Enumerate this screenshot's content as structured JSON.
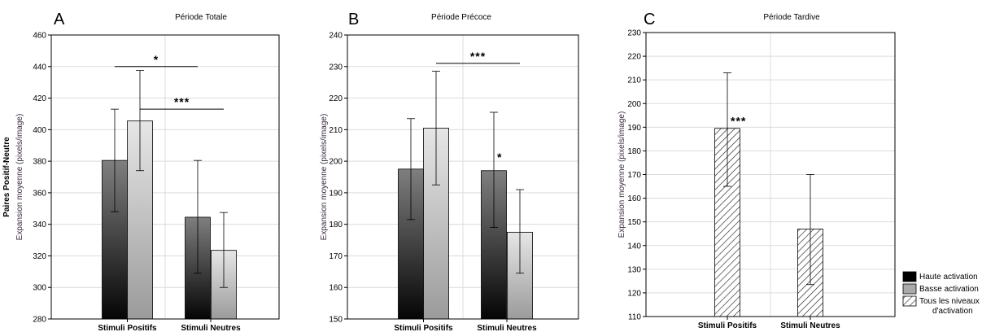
{
  "chart_data": [
    {
      "type": "bar",
      "panel_letter": "A",
      "title": "Période Totale",
      "ylabel_lines": [
        "Paires Positif-Neutre",
        "Expansion moyenne (pixels/image)"
      ],
      "ylim": [
        280,
        460
      ],
      "yticks": [
        280,
        300,
        320,
        340,
        360,
        380,
        400,
        420,
        440,
        460
      ],
      "grid": true,
      "categories": [
        "Stimuli Positifs",
        "Stimuli Neutres"
      ],
      "series": [
        {
          "values": [
            380.5,
            344.5
          ],
          "err_low": [
            348,
            309
          ],
          "err_high": [
            413,
            380.5
          ],
          "fill": "dark"
        },
        {
          "values": [
            405.5,
            323.5
          ],
          "err_low": [
            374,
            300
          ],
          "err_high": [
            437.5,
            347.5
          ],
          "fill": "light"
        }
      ],
      "annotations": [
        {
          "text": "*",
          "x1": 0,
          "x2": 1,
          "level": 440
        },
        {
          "text": "***",
          "x1": 0,
          "x2": 1,
          "level": 413
        }
      ]
    },
    {
      "type": "bar",
      "panel_letter": "B",
      "title": "Période Précoce",
      "ylabel_lines": [
        "Expansion moyenne (pixels/image)"
      ],
      "ylim": [
        150,
        240
      ],
      "yticks": [
        150,
        160,
        170,
        180,
        190,
        200,
        210,
        220,
        230,
        240
      ],
      "grid": true,
      "categories": [
        "Stimuli Positifs",
        "Stimuli Neutres"
      ],
      "series": [
        {
          "values": [
            197.5,
            197
          ],
          "err_low": [
            181.5,
            179
          ],
          "err_high": [
            213.5,
            215.5
          ],
          "fill": "dark"
        },
        {
          "values": [
            210.5,
            177.5
          ],
          "err_low": [
            192.5,
            164.5
          ],
          "err_high": [
            228.5,
            191
          ],
          "fill": "light"
        }
      ],
      "annotations": [
        {
          "text": "***",
          "x1": 0,
          "x2": 1,
          "level": 231
        },
        {
          "text": "*",
          "point": [
            1,
            0
          ],
          "level": 200
        }
      ]
    },
    {
      "type": "bar",
      "panel_letter": "C",
      "title": "Période Tardive",
      "ylabel_lines": [
        "Expansion moyenne (pixels/image)"
      ],
      "ylim": [
        110,
        230
      ],
      "yticks": [
        110,
        120,
        130,
        140,
        150,
        160,
        170,
        180,
        190,
        200,
        210,
        220,
        230
      ],
      "grid": true,
      "categories": [
        "Stimuli Positifs",
        "Stimuli Neutres"
      ],
      "series": [
        {
          "values": [
            189.5,
            147
          ],
          "err_low": [
            165,
            123.5
          ],
          "err_high": [
            213,
            170
          ],
          "fill": "hatch"
        }
      ],
      "annotations": [
        {
          "text": "***",
          "point": [
            0,
            0
          ],
          "level": 191
        }
      ]
    }
  ],
  "legend": {
    "placement": "right",
    "entries": [
      {
        "label_lines": [
          "Haute activation"
        ],
        "fill": "#000000"
      },
      {
        "label_lines": [
          "Basse activation"
        ],
        "fill": "#a9a9a9"
      },
      {
        "label_lines": [
          "Tous les niveaux",
          "d'activation"
        ],
        "fill": "hatch"
      }
    ]
  }
}
